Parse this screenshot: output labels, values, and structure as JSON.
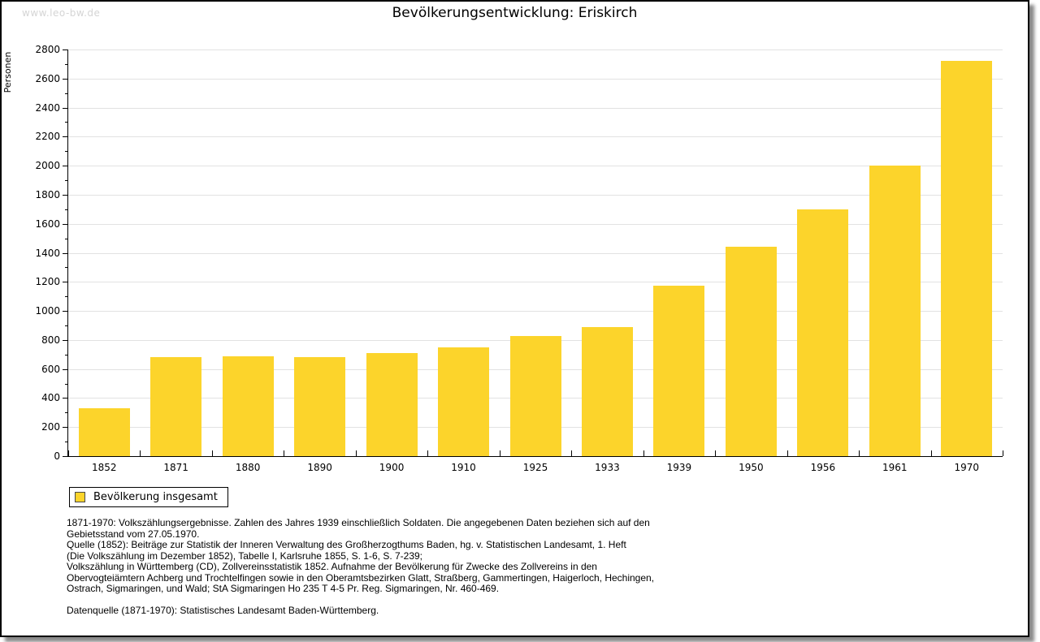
{
  "watermark": "www.leo-bw.de",
  "title": "Bevölkerungsentwicklung: Eriskirch",
  "legend": {
    "label": "Bevölkerung insgesamt"
  },
  "chart_data": {
    "type": "bar",
    "title": "Bevölkerungsentwicklung: Eriskirch",
    "xlabel": "",
    "ylabel": "Personen",
    "categories": [
      "1852",
      "1871",
      "1880",
      "1890",
      "1900",
      "1910",
      "1925",
      "1933",
      "1939",
      "1950",
      "1956",
      "1961",
      "1970"
    ],
    "series": [
      {
        "name": "Bevölkerung insgesamt",
        "values": [
          330,
          680,
          690,
          680,
          710,
          750,
          830,
          890,
          1175,
          1440,
          1700,
          2000,
          2720
        ]
      }
    ],
    "ylim": [
      0,
      2800
    ],
    "ytick_step": 200,
    "minor_tick_step": 100,
    "grid": "horizontal major gridlines",
    "legend_position": "bottom-left",
    "bar_color": "#fcd42b"
  },
  "footnote": {
    "lines": [
      "1871-1970: Volkszählungsergebnisse. Zahlen des Jahres 1939 einschließlich Soldaten. Die angegebenen Daten beziehen sich auf den",
      "Gebietsstand vom 27.05.1970.",
      "Quelle (1852): Beiträge zur Statistik der Inneren Verwaltung des Großherzogthums Baden, hg. v. Statistischen Landesamt, 1. Heft",
      "(Die Volkszählung im Dezember 1852), Tabelle I, Karlsruhe 1855, S. 1-6, S. 7-239;",
      "Volkszählung in Württemberg (CD), Zollvereinsstatistik 1852. Aufnahme der Bevölkerung für Zwecke des Zollvereins in den",
      "Obervogteiämtern Achberg und Trochtelfingen sowie in den Oberamtsbezirken Glatt, Straßberg, Gammertingen, Haigerloch, Hechingen,",
      "Ostrach, Sigmaringen, und Wald; StA Sigmaringen Ho 235 T 4-5 Pr. Reg. Sigmaringen, Nr. 460-469.",
      "",
      "Datenquelle (1871-1970): Statistisches Landesamt Baden-Württemberg."
    ]
  }
}
